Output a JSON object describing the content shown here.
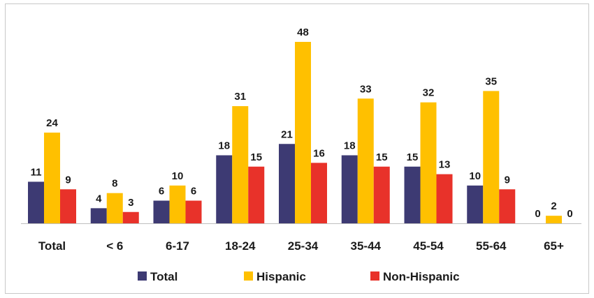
{
  "chart_data": {
    "type": "bar",
    "title": "",
    "xlabel": "",
    "ylabel": "",
    "categories": [
      "Total",
      "< 6",
      "6-17",
      "18-24",
      "25-34",
      "35-44",
      "45-54",
      "55-64",
      "65+"
    ],
    "series": [
      {
        "name": "Total",
        "color": "#3d3a73",
        "values": [
          11,
          4,
          6,
          18,
          21,
          18,
          15,
          10,
          0
        ]
      },
      {
        "name": "Hispanic",
        "color": "#ffc000",
        "values": [
          24,
          8,
          10,
          31,
          48,
          33,
          32,
          35,
          2
        ]
      },
      {
        "name": "Non-Hispanic",
        "color": "#e8322a",
        "values": [
          9,
          3,
          6,
          15,
          16,
          15,
          13,
          9,
          0
        ]
      }
    ],
    "ylim": [
      0,
      48
    ],
    "grid": false,
    "legend_position": "bottom",
    "data_labels": true
  }
}
